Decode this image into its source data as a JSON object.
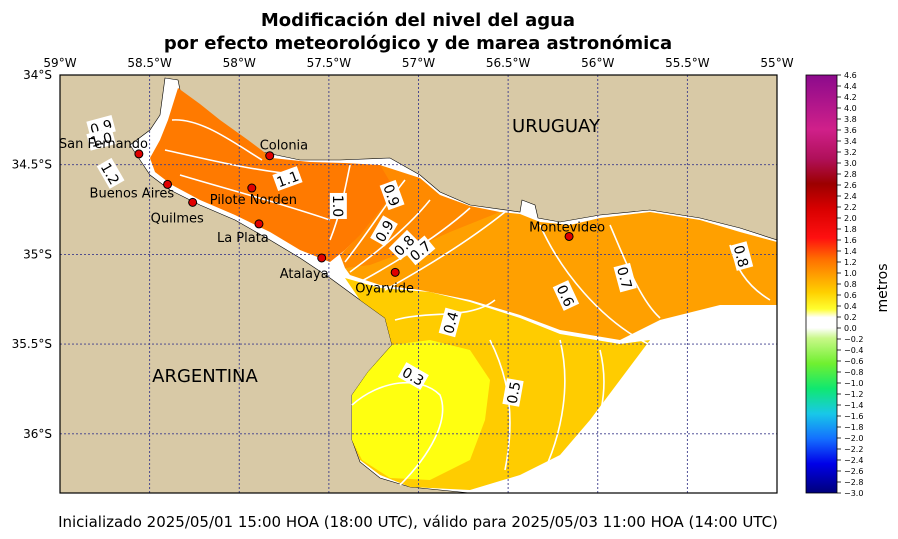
{
  "chart_data": {
    "type": "heatmap",
    "title_line1": "Modificación del nivel del agua",
    "title_line2": "por efecto meteorológico y de marea astronómica",
    "caption": "Inicializado 2025/05/01 15:00 HOA (18:00 UTC), válido para 2025/05/03 11:00 HOA (14:00 UTC)",
    "x_ticks": [
      {
        "value": -59.0,
        "label": "59°W"
      },
      {
        "value": -58.5,
        "label": "58.5°W"
      },
      {
        "value": -58.0,
        "label": "58°W"
      },
      {
        "value": -57.5,
        "label": "57.5°W"
      },
      {
        "value": -57.0,
        "label": "57°W"
      },
      {
        "value": -56.5,
        "label": "56.5°W"
      },
      {
        "value": -56.0,
        "label": "56°W"
      },
      {
        "value": -55.5,
        "label": "55.5°W"
      },
      {
        "value": -55.0,
        "label": "55°W"
      }
    ],
    "y_ticks": [
      {
        "value": -34.0,
        "label": "34°S"
      },
      {
        "value": -34.5,
        "label": "34.5°S"
      },
      {
        "value": -35.0,
        "label": "35°S"
      },
      {
        "value": -35.5,
        "label": "35.5°S"
      },
      {
        "value": -36.0,
        "label": "36°S"
      }
    ],
    "xlim": [
      -59.0,
      -55.0
    ],
    "ylim": [
      -36.33,
      -34.0
    ],
    "grid": true,
    "colorbar": {
      "label": "metros",
      "min": -3.0,
      "max": 4.6,
      "ticks": [
        "4.6",
        "4.4",
        "4.2",
        "4.0",
        "3.8",
        "3.6",
        "3.4",
        "3.2",
        "3.0",
        "2.8",
        "2.6",
        "2.4",
        "2.2",
        "2.0",
        "1.8",
        "1.6",
        "1.4",
        "1.2",
        "1.0",
        "0.8",
        "0.6",
        "0.4",
        "0.2",
        "0.0",
        "−0.2",
        "−0.4",
        "−0.6",
        "−0.8",
        "−1.0",
        "−1.2",
        "−1.4",
        "−1.6",
        "−1.8",
        "−2.0",
        "−2.2",
        "−2.4",
        "−2.6",
        "−2.8",
        "−3.0"
      ]
    },
    "contour_labels": [
      {
        "text": "0.9",
        "lon": -58.77,
        "lat": -34.29,
        "angle": -15
      },
      {
        "text": "1.0",
        "lon": -58.77,
        "lat": -34.36,
        "angle": -15
      },
      {
        "text": "1.2",
        "lon": -58.72,
        "lat": -34.55,
        "angle": 60
      },
      {
        "text": "1.1",
        "lon": -57.73,
        "lat": -34.58,
        "angle": -20
      },
      {
        "text": "1.0",
        "lon": -57.45,
        "lat": -34.73,
        "angle": 90
      },
      {
        "text": "0.9",
        "lon": -57.15,
        "lat": -34.67,
        "angle": 70
      },
      {
        "text": "0.9",
        "lon": -57.19,
        "lat": -34.87,
        "angle": -60
      },
      {
        "text": "0.8",
        "lon": -57.08,
        "lat": -34.95,
        "angle": -45
      },
      {
        "text": "0.7",
        "lon": -56.99,
        "lat": -34.98,
        "angle": -40
      },
      {
        "text": "0.6",
        "lon": -56.18,
        "lat": -35.23,
        "angle": 65
      },
      {
        "text": "0.7",
        "lon": -55.85,
        "lat": -35.13,
        "angle": 75
      },
      {
        "text": "0.8",
        "lon": -55.2,
        "lat": -35.01,
        "angle": 75
      },
      {
        "text": "0.4",
        "lon": -56.82,
        "lat": -35.38,
        "angle": -75
      },
      {
        "text": "0.3",
        "lon": -57.03,
        "lat": -35.68,
        "angle": 30
      },
      {
        "text": "0.5",
        "lon": -56.47,
        "lat": -35.77,
        "angle": -80
      }
    ],
    "stations": [
      {
        "name": "San Fernando",
        "lon": -58.56,
        "lat": -34.44
      },
      {
        "name": "Buenos Aires",
        "lon": -58.4,
        "lat": -34.61
      },
      {
        "name": "Quilmes",
        "lon": -58.26,
        "lat": -34.71
      },
      {
        "name": "Pilote Norden",
        "lon": -57.93,
        "lat": -34.63
      },
      {
        "name": "Colonia",
        "lon": -57.83,
        "lat": -34.45
      },
      {
        "name": "La Plata",
        "lon": -57.89,
        "lat": -34.83
      },
      {
        "name": "Atalaya",
        "lon": -57.54,
        "lat": -35.02
      },
      {
        "name": "Oyarvide",
        "lon": -57.13,
        "lat": -35.1
      },
      {
        "name": "Montevideo",
        "lon": -56.16,
        "lat": -34.9
      }
    ],
    "regions": [
      {
        "name": "URUGUAY"
      },
      {
        "name": "ARGENTINA"
      }
    ]
  }
}
